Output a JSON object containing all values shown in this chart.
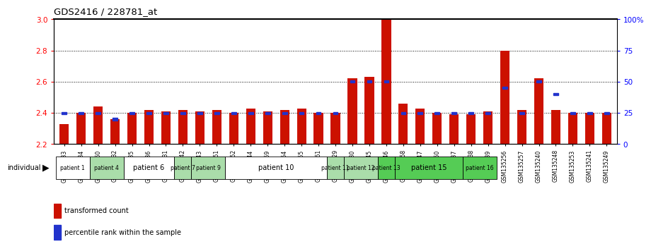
{
  "title": "GDS2416 / 228781_at",
  "samples": [
    "GSM135233",
    "GSM135234",
    "GSM135260",
    "GSM135232",
    "GSM135235",
    "GSM135236",
    "GSM135231",
    "GSM135242",
    "GSM135243",
    "GSM135251",
    "GSM135252",
    "GSM135244",
    "GSM135259",
    "GSM135254",
    "GSM135255",
    "GSM135261",
    "GSM135229",
    "GSM135230",
    "GSM135245",
    "GSM135246",
    "GSM135258",
    "GSM135247",
    "GSM135250",
    "GSM135237",
    "GSM135238",
    "GSM135239",
    "GSM135256",
    "GSM135257",
    "GSM135240",
    "GSM135248",
    "GSM135253",
    "GSM135241",
    "GSM135249"
  ],
  "red_values": [
    2.33,
    2.4,
    2.44,
    2.36,
    2.4,
    2.42,
    2.41,
    2.42,
    2.41,
    2.42,
    2.4,
    2.43,
    2.41,
    2.42,
    2.43,
    2.4,
    2.4,
    2.62,
    2.63,
    3.0,
    2.46,
    2.43,
    2.4,
    2.39,
    2.39,
    2.41,
    2.8,
    2.42,
    2.62,
    2.42,
    2.4,
    2.4,
    2.4
  ],
  "blue_values": [
    25,
    25,
    25,
    20,
    25,
    25,
    25,
    25,
    25,
    25,
    25,
    25,
    25,
    25,
    25,
    25,
    25,
    50,
    50,
    50,
    25,
    25,
    25,
    25,
    25,
    25,
    45,
    25,
    50,
    40,
    25,
    25,
    25
  ],
  "patients": [
    {
      "label": "patient 1",
      "start": 0,
      "end": 2,
      "color": "#ffffff"
    },
    {
      "label": "patient 4",
      "start": 2,
      "end": 4,
      "color": "#aaddaa"
    },
    {
      "label": "patient 6",
      "start": 4,
      "end": 7,
      "color": "#ffffff"
    },
    {
      "label": "patient 7",
      "start": 7,
      "end": 8,
      "color": "#aaddaa"
    },
    {
      "label": "patient 9",
      "start": 8,
      "end": 10,
      "color": "#aaddaa"
    },
    {
      "label": "patient 10",
      "start": 10,
      "end": 16,
      "color": "#ffffff"
    },
    {
      "label": "patient 11",
      "start": 16,
      "end": 17,
      "color": "#aaddaa"
    },
    {
      "label": "patient 12",
      "start": 17,
      "end": 19,
      "color": "#aaddaa"
    },
    {
      "label": "patient 13",
      "start": 19,
      "end": 20,
      "color": "#55cc55"
    },
    {
      "label": "patient 15",
      "start": 20,
      "end": 24,
      "color": "#55cc55"
    },
    {
      "label": "patient 16",
      "start": 24,
      "end": 26,
      "color": "#55cc55"
    }
  ],
  "ylim_left": [
    2.2,
    3.0
  ],
  "ylim_right": [
    0,
    100
  ],
  "yticks_left": [
    2.2,
    2.4,
    2.6,
    2.8,
    3.0
  ],
  "yticks_right": [
    0,
    25,
    50,
    75,
    100
  ],
  "ytick_labels_right": [
    "0",
    "25",
    "50",
    "75",
    "100%"
  ],
  "bar_bottom": 2.2,
  "bar_color": "#cc1100",
  "dot_color": "#2233cc",
  "background_color": "#ffffff"
}
